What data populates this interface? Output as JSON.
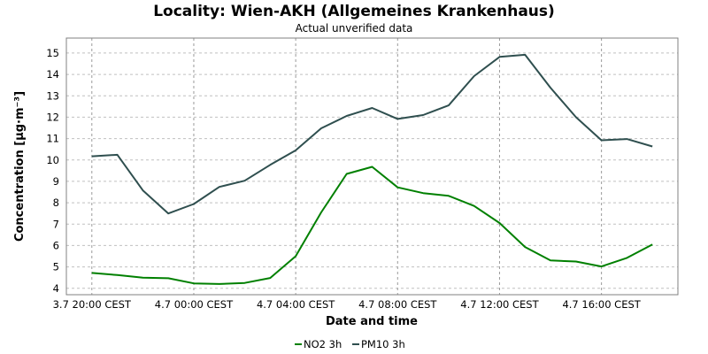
{
  "chart_data": {
    "type": "line",
    "title": "Locality: Wien-AKH (Allgemeines Krankenhaus)",
    "subtitle": "Actual unverified data",
    "xlabel": "Date and time",
    "ylabel": "Concentration [µg·m⁻³]",
    "ylim": [
      3.7,
      15.7
    ],
    "yticks": [
      4,
      5,
      6,
      7,
      8,
      9,
      10,
      11,
      12,
      13,
      14,
      15
    ],
    "xlim": [
      -1.0,
      23.0
    ],
    "xticks": [
      {
        "x": 0,
        "label": "3.7 20:00 CEST"
      },
      {
        "x": 4,
        "label": "4.7 00:00 CEST"
      },
      {
        "x": 8,
        "label": "4.7 04:00 CEST"
      },
      {
        "x": 12,
        "label": "4.7 08:00 CEST"
      },
      {
        "x": 16,
        "label": "4.7 12:00 CEST"
      },
      {
        "x": 20,
        "label": "4.7 16:00 CEST"
      }
    ],
    "grid": true,
    "legend": "bottom-center",
    "series": [
      {
        "name": "NO2 3h",
        "color": "#008000",
        "x": [
          0,
          1,
          2,
          3,
          4,
          5,
          6,
          7,
          8,
          9,
          10,
          11,
          12,
          13,
          14,
          15,
          16,
          17,
          18,
          19,
          20,
          21,
          22
        ],
        "values": [
          4.72,
          4.62,
          4.5,
          4.47,
          4.23,
          4.2,
          4.25,
          4.48,
          5.5,
          7.55,
          9.35,
          9.68,
          8.72,
          8.45,
          8.32,
          7.85,
          7.05,
          5.93,
          5.3,
          5.25,
          5.02,
          5.42,
          6.05
        ]
      },
      {
        "name": "PM10 3h",
        "color": "#2f4f4f",
        "x": [
          0,
          1,
          2,
          3,
          4,
          5,
          6,
          7,
          8,
          9,
          10,
          11,
          12,
          13,
          14,
          15,
          16,
          17,
          18,
          19,
          20,
          21,
          22
        ],
        "values": [
          10.17,
          10.24,
          8.58,
          7.5,
          7.94,
          8.74,
          9.03,
          9.77,
          10.45,
          11.48,
          12.06,
          12.43,
          11.92,
          12.1,
          12.55,
          13.92,
          14.82,
          14.92,
          13.38,
          12.0,
          10.92,
          10.98,
          10.63
        ]
      }
    ]
  }
}
